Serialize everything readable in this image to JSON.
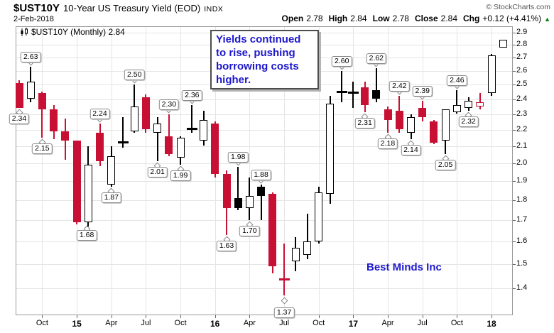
{
  "window": {
    "title_symbol": "$UST10Y",
    "title_desc": "10-Year US Treasury Yield (EOD)",
    "title_exchange": "INDX",
    "date": "2-Feb-2018",
    "copyright": "© StockCharts.com"
  },
  "quote": {
    "open": {
      "label": "Open",
      "value": "2.78"
    },
    "high": {
      "label": "High",
      "value": "2.84"
    },
    "low": {
      "label": "Low",
      "value": "2.78"
    },
    "close": {
      "label": "Close",
      "value": "2.84"
    },
    "chg": {
      "label": "Chg",
      "value": "+0.12 (+4.41%)"
    },
    "direction_glyph": "▲",
    "direction_color": "#0a7a0a"
  },
  "legend": {
    "icon": "candlestick-icon",
    "text": "$UST10Y (Monthly) 2.84"
  },
  "annotation": {
    "lines": [
      "Yields continued",
      "to rise, pushing",
      "borrowing costs",
      "higher."
    ],
    "text_color": "#1d18cb"
  },
  "watermark": {
    "text": "Best Minds Inc",
    "text_color": "#1d18cb"
  },
  "chart_data": {
    "type": "candlestick",
    "title": "$UST10Y (Monthly)",
    "last_value": 2.84,
    "scale": "log",
    "ylim": [
      1.3,
      2.95
    ],
    "grid": true,
    "colors": {
      "down": "#c81034",
      "neutral": "#000000",
      "grid": "#e5e5e5",
      "frame": "#999999",
      "flag_border": "#888888"
    },
    "y_axis": {
      "ticks": [
        "2.9",
        "2.8",
        "2.7",
        "2.6",
        "2.5",
        "2.4",
        "2.3",
        "2.2",
        "2.1",
        "2.0",
        "1.9",
        "1.8",
        "1.7",
        "1.6",
        "1.5",
        "1.4"
      ]
    },
    "x_axis": {
      "ticks": [
        {
          "label": "Oct",
          "index": 2
        },
        {
          "label": "15",
          "index": 5,
          "year": true
        },
        {
          "label": "Apr",
          "index": 8
        },
        {
          "label": "Jul",
          "index": 11
        },
        {
          "label": "Oct",
          "index": 14
        },
        {
          "label": "16",
          "index": 17,
          "year": true
        },
        {
          "label": "Apr",
          "index": 20
        },
        {
          "label": "Jul",
          "index": 23
        },
        {
          "label": "Oct",
          "index": 26
        },
        {
          "label": "17",
          "index": 29,
          "year": true
        },
        {
          "label": "Apr",
          "index": 32
        },
        {
          "label": "Jul",
          "index": 35
        },
        {
          "label": "Oct",
          "index": 38
        },
        {
          "label": "18",
          "index": 41,
          "year": true
        }
      ]
    },
    "candles": [
      {
        "date": "Aug 2014",
        "o": 2.51,
        "h": 2.53,
        "l": 2.34,
        "c": 2.34,
        "style": "down",
        "label": {
          "text": "2.34",
          "side": "low"
        }
      },
      {
        "date": "Sep 2014",
        "o": 2.4,
        "h": 2.63,
        "l": 2.38,
        "c": 2.52,
        "style": "up",
        "label": {
          "text": "2.63",
          "side": "high"
        }
      },
      {
        "date": "Oct 2014",
        "o": 2.44,
        "h": 2.45,
        "l": 2.15,
        "c": 2.33,
        "style": "down",
        "label": {
          "text": "2.15",
          "side": "low"
        }
      },
      {
        "date": "Nov 2014",
        "o": 2.33,
        "h": 2.36,
        "l": 2.14,
        "c": 2.19,
        "style": "down"
      },
      {
        "date": "Dec 2014",
        "o": 2.19,
        "h": 2.27,
        "l": 2.02,
        "c": 2.13,
        "style": "down"
      },
      {
        "date": "Jan 2015",
        "o": 2.13,
        "h": 2.13,
        "l": 1.68,
        "c": 1.69,
        "style": "down",
        "label": {
          "text": "1.68",
          "side": "low",
          "dx": 14
        }
      },
      {
        "date": "Feb 2015",
        "o": 1.69,
        "h": 2.1,
        "l": 1.67,
        "c": 1.99,
        "style": "up"
      },
      {
        "date": "Mar 2015",
        "o": 2.18,
        "h": 2.24,
        "l": 1.98,
        "c": 2.01,
        "style": "down",
        "label": {
          "text": "2.24",
          "side": "high"
        }
      },
      {
        "date": "Apr 2015",
        "o": 1.88,
        "h": 2.1,
        "l": 1.87,
        "c": 2.04,
        "style": "up",
        "label": {
          "text": "1.87",
          "side": "low"
        }
      },
      {
        "date": "May 2015",
        "o": 2.12,
        "h": 2.28,
        "l": 2.09,
        "c": 2.12,
        "style": "cross-black"
      },
      {
        "date": "Jun 2015",
        "o": 2.19,
        "h": 2.5,
        "l": 2.18,
        "c": 2.35,
        "style": "up",
        "label": {
          "text": "2.50",
          "side": "high"
        }
      },
      {
        "date": "Jul 2015",
        "o": 2.41,
        "h": 2.43,
        "l": 2.18,
        "c": 2.2,
        "style": "down"
      },
      {
        "date": "Aug 2015",
        "o": 2.18,
        "h": 2.28,
        "l": 2.01,
        "c": 2.24,
        "style": "up",
        "label": {
          "text": "2.01",
          "side": "low"
        }
      },
      {
        "date": "Sep 2015",
        "o": 2.16,
        "h": 2.3,
        "l": 2.04,
        "c": 2.05,
        "style": "down",
        "label": {
          "text": "2.30",
          "side": "high"
        }
      },
      {
        "date": "Oct 2015",
        "o": 2.03,
        "h": 2.16,
        "l": 1.99,
        "c": 2.15,
        "style": "up",
        "label": {
          "text": "1.99",
          "side": "low"
        }
      },
      {
        "date": "Nov 2015",
        "o": 2.21,
        "h": 2.36,
        "l": 2.18,
        "c": 2.2,
        "style": "cross-black",
        "label": {
          "text": "2.36",
          "side": "high"
        }
      },
      {
        "date": "Dec 2015",
        "o": 2.13,
        "h": 2.32,
        "l": 2.1,
        "c": 2.26,
        "style": "up"
      },
      {
        "date": "Jan 2016",
        "o": 2.24,
        "h": 2.25,
        "l": 1.92,
        "c": 1.94,
        "style": "down"
      },
      {
        "date": "Feb 2016",
        "o": 1.94,
        "h": 1.96,
        "l": 1.63,
        "c": 1.76,
        "style": "down",
        "label": {
          "text": "1.63",
          "side": "low"
        }
      },
      {
        "date": "Mar 2016",
        "o": 1.81,
        "h": 1.98,
        "l": 1.75,
        "c": 1.76,
        "style": "filled-black",
        "label": {
          "text": "1.98",
          "side": "high"
        }
      },
      {
        "date": "Apr 2016",
        "o": 1.76,
        "h": 1.92,
        "l": 1.7,
        "c": 1.82,
        "style": "up",
        "label": {
          "text": "1.70",
          "side": "low"
        }
      },
      {
        "date": "May 2016",
        "o": 1.87,
        "h": 1.88,
        "l": 1.7,
        "c": 1.82,
        "style": "filled-black",
        "label": {
          "text": "1.88",
          "side": "high"
        }
      },
      {
        "date": "Jun 2016",
        "o": 1.83,
        "h": 1.84,
        "l": 1.46,
        "c": 1.49,
        "style": "down"
      },
      {
        "date": "Jul 2016",
        "o": 1.44,
        "h": 1.59,
        "l": 1.37,
        "c": 1.43,
        "style": "cross-red",
        "label": {
          "text": "1.37",
          "side": "low",
          "dy": 8
        }
      },
      {
        "date": "Aug 2016",
        "o": 1.51,
        "h": 1.62,
        "l": 1.47,
        "c": 1.57,
        "style": "up"
      },
      {
        "date": "Sep 2016",
        "o": 1.54,
        "h": 1.73,
        "l": 1.52,
        "c": 1.6,
        "style": "up"
      },
      {
        "date": "Oct 2016",
        "o": 1.6,
        "h": 1.87,
        "l": 1.59,
        "c": 1.84,
        "style": "up"
      },
      {
        "date": "Nov 2016",
        "o": 1.83,
        "h": 2.42,
        "l": 1.78,
        "c": 2.37,
        "style": "up"
      },
      {
        "date": "Dec 2016",
        "o": 2.45,
        "h": 2.6,
        "l": 2.38,
        "c": 2.45,
        "style": "cross-black",
        "label": {
          "text": "2.60",
          "side": "high"
        }
      },
      {
        "date": "Jan 2017",
        "o": 2.44,
        "h": 2.52,
        "l": 2.34,
        "c": 2.45,
        "style": "cross-black"
      },
      {
        "date": "Feb 2017",
        "o": 2.48,
        "h": 2.52,
        "l": 2.31,
        "c": 2.36,
        "style": "down",
        "label": {
          "text": "2.31",
          "side": "low"
        }
      },
      {
        "date": "Mar 2017",
        "o": 2.46,
        "h": 2.62,
        "l": 2.38,
        "c": 2.4,
        "style": "filled-black",
        "label": {
          "text": "2.62",
          "side": "high"
        }
      },
      {
        "date": "Apr 2017",
        "o": 2.33,
        "h": 2.35,
        "l": 2.18,
        "c": 2.26,
        "style": "down",
        "label": {
          "text": "2.18",
          "side": "low"
        }
      },
      {
        "date": "May 2017",
        "o": 2.32,
        "h": 2.42,
        "l": 2.18,
        "c": 2.2,
        "style": "down",
        "label": {
          "text": "2.42",
          "side": "high"
        }
      },
      {
        "date": "Jun 2017",
        "o": 2.18,
        "h": 2.3,
        "l": 2.14,
        "c": 2.28,
        "style": "up",
        "label": {
          "text": "2.14",
          "side": "low"
        }
      },
      {
        "date": "Jul 2017",
        "o": 2.34,
        "h": 2.39,
        "l": 2.25,
        "c": 2.28,
        "style": "down",
        "label": {
          "text": "2.39",
          "side": "high"
        }
      },
      {
        "date": "Aug 2017",
        "o": 2.25,
        "h": 2.26,
        "l": 2.11,
        "c": 2.12,
        "style": "down"
      },
      {
        "date": "Sep 2017",
        "o": 2.13,
        "h": 2.33,
        "l": 2.05,
        "c": 2.33,
        "style": "up",
        "label": {
          "text": "2.05",
          "side": "low"
        }
      },
      {
        "date": "Oct 2017",
        "o": 2.31,
        "h": 2.46,
        "l": 2.3,
        "c": 2.36,
        "style": "up",
        "label": {
          "text": "2.46",
          "side": "high"
        }
      },
      {
        "date": "Nov 2017",
        "o": 2.34,
        "h": 2.41,
        "l": 2.32,
        "c": 2.39,
        "style": "up",
        "label": {
          "text": "2.32",
          "side": "low"
        }
      },
      {
        "date": "Dec 2017",
        "o": 2.35,
        "h": 2.44,
        "l": 2.33,
        "c": 2.38,
        "style": "hollow-red"
      },
      {
        "date": "Jan 2018",
        "o": 2.44,
        "h": 2.73,
        "l": 2.42,
        "c": 2.72,
        "style": "up"
      },
      {
        "date": "Feb 2018",
        "o": 2.78,
        "h": 2.84,
        "l": 2.78,
        "c": 2.84,
        "style": "up"
      }
    ]
  }
}
